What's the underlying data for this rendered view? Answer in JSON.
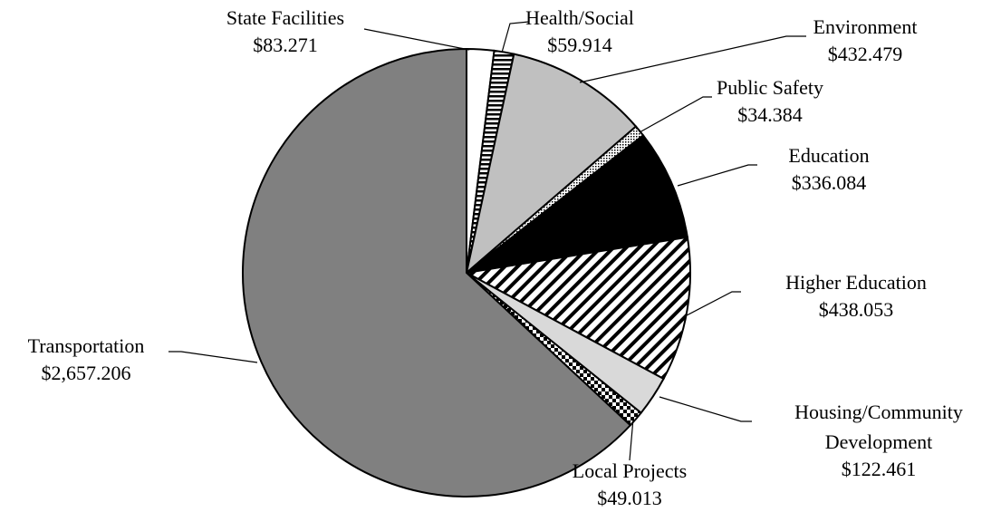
{
  "chart_data": {
    "type": "pie",
    "categories": [
      "State Facilities",
      "Health/Social",
      "Environment",
      "Public Safety",
      "Education",
      "Higher Education",
      "Housing/Community Development",
      "Local Projects",
      "Transportation"
    ],
    "values": [
      83.271,
      59.914,
      432.479,
      34.384,
      336.084,
      438.053,
      122.461,
      49.013,
      2657.206
    ],
    "value_labels": [
      "$83.271",
      "$59.914",
      "$432.479",
      "$34.384",
      "$336.084",
      "$438.053",
      "$122.461",
      "$49.013",
      "$2,657.206"
    ],
    "colors": [
      "#ffffff",
      "#ffffff",
      "#c0c0c0",
      "#ffffff",
      "#000000",
      "#ffffff",
      "#d9d9d9",
      "#ffffff",
      "#808080"
    ],
    "hatch": [
      "none",
      "horizontal",
      "none",
      "dots",
      "none",
      "diagonal",
      "none",
      "checker",
      "none"
    ]
  }
}
